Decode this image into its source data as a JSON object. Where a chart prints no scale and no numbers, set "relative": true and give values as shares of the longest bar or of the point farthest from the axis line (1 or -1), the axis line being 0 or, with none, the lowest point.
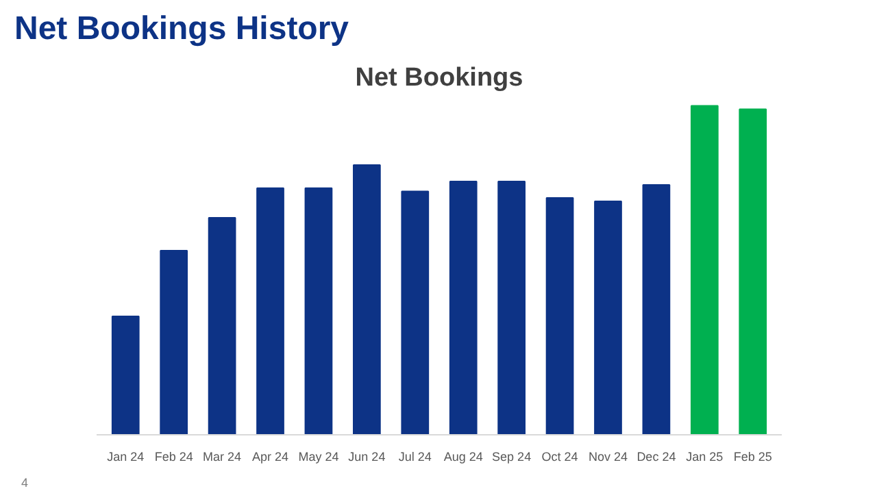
{
  "chart_data": {
    "type": "bar",
    "title": "Net Bookings History",
    "subtitle": "Net Bookings",
    "relative": true,
    "grid": false,
    "categories": [
      "Jan 24",
      "Feb 24",
      "Mar 24",
      "Apr 24",
      "May 24",
      "Jun 24",
      "Jul 24",
      "Aug 24",
      "Sep 24",
      "Oct 24",
      "Nov 24",
      "Dec 24",
      "Jan 25",
      "Feb 25"
    ],
    "values": [
      0.36,
      0.56,
      0.66,
      0.75,
      0.75,
      0.82,
      0.74,
      0.77,
      0.77,
      0.72,
      0.71,
      0.76,
      1,
      0.99
    ],
    "colors": [
      "#0d3386",
      "#0d3386",
      "#0d3386",
      "#0d3386",
      "#0d3386",
      "#0d3386",
      "#0d3386",
      "#0d3386",
      "#0d3386",
      "#0d3386",
      "#0d3386",
      "#0d3386",
      "#00b050",
      "#00b050"
    ],
    "annotations": [
      "4"
    ]
  }
}
